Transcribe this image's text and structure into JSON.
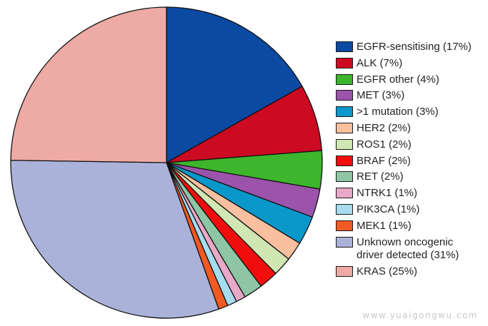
{
  "chart_data": {
    "type": "pie",
    "start_angle_deg": 0,
    "direction": "clockwise",
    "slices": [
      {
        "label": "EGFR-sensitising (17%)",
        "value": 17,
        "color": "#0b4aa2"
      },
      {
        "label": "ALK (7%)",
        "value": 7,
        "color": "#cc0a22"
      },
      {
        "label": "EGFR other (4%)",
        "value": 4,
        "color": "#3db62d"
      },
      {
        "label": "MET (3%)",
        "value": 3,
        "color": "#9b54aa"
      },
      {
        "label": ">1 mutation (3%)",
        "value": 3,
        "color": "#0a98cb"
      },
      {
        "label": "HER2 (2%)",
        "value": 2,
        "color": "#f9bf9f"
      },
      {
        "label": "ROS1 (2%)",
        "value": 2,
        "color": "#d1e7b3"
      },
      {
        "label": "BRAF (2%)",
        "value": 2,
        "color": "#f20d0d"
      },
      {
        "label": "RET (2%)",
        "value": 2,
        "color": "#8ec6a5"
      },
      {
        "label": "NTRK1 (1%)",
        "value": 1,
        "color": "#e8a9c9"
      },
      {
        "label": "PIK3CA (1%)",
        "value": 1,
        "color": "#a7dcef"
      },
      {
        "label": "MEK1 (1%)",
        "value": 1,
        "color": "#f15a22"
      },
      {
        "label": "Unknown oncogenic\ndriver detected (31%)",
        "value": 31,
        "color": "#abb2da"
      },
      {
        "label": "KRAS (25%)",
        "value": 25,
        "color": "#eeaaa4"
      }
    ],
    "legend_position": "right"
  },
  "watermark": "www.yuaigongwu.com"
}
